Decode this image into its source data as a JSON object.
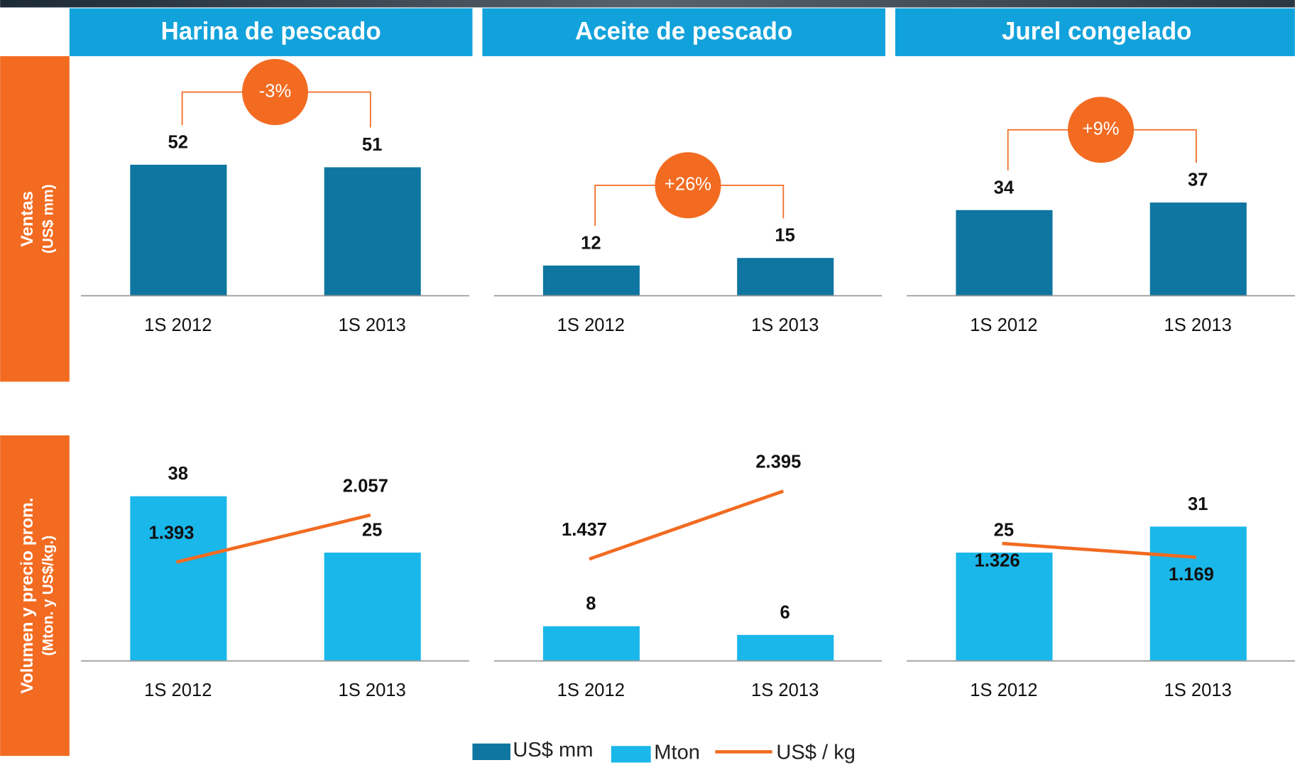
{
  "row_labels": [
    {
      "title": "Ventas",
      "subtitle": "(US$ mm)"
    },
    {
      "title": "Volumen y precio prom.",
      "subtitle": "(Mton. y US$/kg.)"
    }
  ],
  "chart_data": [
    {
      "type": "bar",
      "title": "Harina de pescado",
      "categories": [
        "1S 2012",
        "1S 2013"
      ],
      "series": [
        {
          "name": "US$ mm",
          "color": "#0e76a0",
          "values": [
            52,
            51
          ]
        }
      ],
      "annotation": "-3%",
      "annotation_color": "#f26b21",
      "ylim": [
        0,
        80
      ]
    },
    {
      "type": "bar",
      "title": "Aceite de pescado",
      "categories": [
        "1S 2012",
        "1S 2013"
      ],
      "series": [
        {
          "name": "US$ mm",
          "color": "#0e76a0",
          "values": [
            12,
            15
          ]
        }
      ],
      "annotation": "+26%",
      "annotation_color": "#f26b21",
      "ylim": [
        0,
        80
      ]
    },
    {
      "type": "bar",
      "title": "Jurel congelado",
      "categories": [
        "1S 2012",
        "1S 2013"
      ],
      "series": [
        {
          "name": "US$ mm",
          "color": "#0e76a0",
          "values": [
            34,
            37
          ]
        }
      ],
      "annotation": "+9%",
      "annotation_color": "#f26b21",
      "ylim": [
        0,
        80
      ]
    },
    {
      "type": "bar",
      "categories": [
        "1S 2012",
        "1S 2013"
      ],
      "series": [
        {
          "name": "Mton",
          "color": "#1ab7ea",
          "values": [
            38,
            25
          ]
        },
        {
          "name": "US$ / kg",
          "type": "line",
          "axis": "y2",
          "color": "#f26b21",
          "values": [
            1.393,
            2.057
          ]
        }
      ],
      "ylim": [
        0,
        45
      ],
      "y2lim": [
        0,
        2.75
      ]
    },
    {
      "type": "bar",
      "categories": [
        "1S 2012",
        "1S 2013"
      ],
      "series": [
        {
          "name": "Mton",
          "color": "#1ab7ea",
          "values": [
            8,
            6
          ]
        },
        {
          "name": "US$ / kg",
          "type": "line",
          "axis": "y2",
          "color": "#f26b21",
          "values": [
            1.437,
            2.395
          ]
        }
      ],
      "ylim": [
        0,
        45
      ],
      "y2lim": [
        0,
        2.75
      ]
    },
    {
      "type": "bar",
      "categories": [
        "1S 2012",
        "1S 2013"
      ],
      "series": [
        {
          "name": "Mton",
          "color": "#1ab7ea",
          "values": [
            25,
            31
          ]
        },
        {
          "name": "US$ / kg",
          "type": "line",
          "axis": "y2",
          "color": "#f26b21",
          "values": [
            1.326,
            1.169
          ]
        }
      ],
      "ylim": [
        0,
        45
      ],
      "y2lim": [
        0,
        2.2
      ]
    }
  ]
}
